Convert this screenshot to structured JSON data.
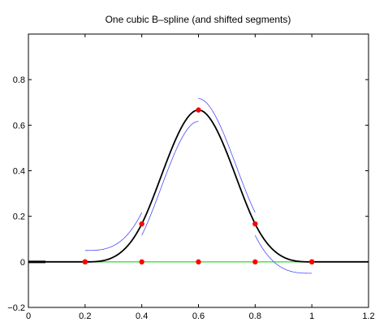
{
  "chart_data": {
    "type": "line",
    "title": "One cubic B–spline (and shifted segments)",
    "xlabel": "",
    "ylabel": "",
    "xlim": [
      0,
      1.2
    ],
    "ylim": [
      -0.2,
      1.0
    ],
    "grid": false,
    "legend": "none",
    "x_ticks": [
      0,
      0.2,
      0.4,
      0.6,
      0.8,
      1,
      1.2
    ],
    "x_tick_labels": [
      "0",
      "0.2",
      "0.4",
      "0.6",
      "0.8",
      "1",
      "1.2"
    ],
    "y_ticks": [
      -0.2,
      0,
      0.2,
      0.4,
      0.6,
      0.8
    ],
    "y_tick_labels": [
      "−0.2",
      "0",
      "0.2",
      "0.4",
      "0.6",
      "0.8"
    ],
    "spline": {
      "knots": [
        0.2,
        0.4,
        0.6,
        0.8,
        1.0
      ],
      "domain": [
        0,
        1.2
      ],
      "color": "#000000"
    },
    "shifted_segments": {
      "color": "#4b4bff",
      "segments": [
        {
          "x_start": 0.2,
          "x_end": 0.4,
          "shift": 0.05
        },
        {
          "x_start": 0.4,
          "x_end": 0.6,
          "shift": -0.05
        },
        {
          "x_start": 0.6,
          "x_end": 0.8,
          "shift": 0.05
        },
        {
          "x_start": 0.8,
          "x_end": 1.0,
          "shift": -0.05
        }
      ]
    },
    "baseline_segment": {
      "x": [
        0.2,
        1.0
      ],
      "y": 0,
      "color": "#00cc00"
    },
    "knot_points": {
      "color": "#ff0000",
      "x": [
        0.2,
        0.4,
        0.6,
        0.8,
        1.0
      ],
      "y": [
        0,
        0.1667,
        0.6667,
        0.1667,
        0
      ]
    },
    "baseline_points": {
      "color": "#ff0000",
      "x": [
        0.2,
        0.4,
        0.6,
        0.8,
        1.0
      ],
      "y": [
        0,
        0,
        0,
        0,
        0
      ]
    }
  }
}
